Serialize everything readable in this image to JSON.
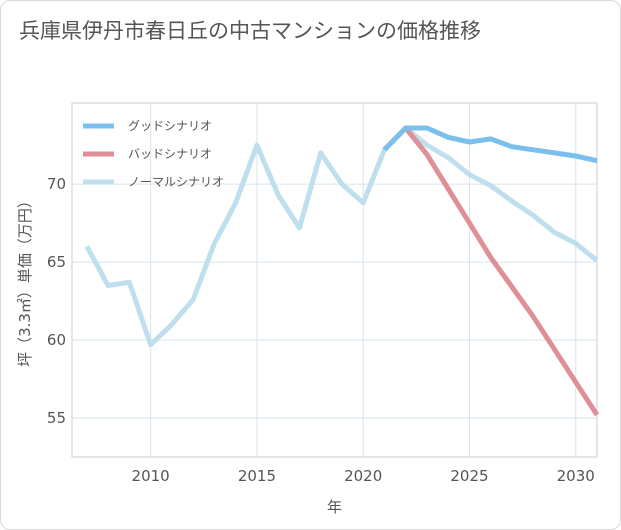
{
  "title": "兵庫県伊丹市春日丘の中古マンションの価格推移",
  "chart_data": {
    "type": "line",
    "title": "兵庫県伊丹市春日丘の中古マンションの価格推移",
    "xlabel": "年",
    "ylabel": "坪（3.3㎡）単価（万円）",
    "xlim": [
      2006.3,
      2031
    ],
    "ylim": [
      52.5,
      75.2
    ],
    "x_ticks": [
      2010,
      2015,
      2020,
      2025,
      2030
    ],
    "y_ticks": [
      55,
      60,
      65,
      70
    ],
    "grid": true,
    "legend_position": "top-left",
    "series": [
      {
        "name": "グッドシナリオ",
        "color": "#7bbfec",
        "x": [
          2021,
          2022,
          2023,
          2024,
          2025,
          2026,
          2027,
          2028,
          2029,
          2030,
          2031
        ],
        "y": [
          72.2,
          73.6,
          73.6,
          73.0,
          72.7,
          72.9,
          72.4,
          72.2,
          72.0,
          71.8,
          71.5
        ]
      },
      {
        "name": "バッドシナリオ",
        "color": "#df8f96",
        "x": [
          2021,
          2022,
          2023,
          2024,
          2025,
          2026,
          2027,
          2028,
          2029,
          2030,
          2031
        ],
        "y": [
          72.2,
          73.6,
          71.9,
          69.7,
          67.5,
          65.3,
          63.4,
          61.5,
          59.4,
          57.3,
          55.2
        ]
      },
      {
        "name": "ノーマルシナリオ",
        "color": "#bfdfee",
        "x": [
          2007,
          2008,
          2009,
          2010,
          2011,
          2012,
          2013,
          2014,
          2015,
          2016,
          2017,
          2018,
          2019,
          2020,
          2021,
          2022,
          2023,
          2024,
          2025,
          2026,
          2027,
          2028,
          2029,
          2030,
          2031
        ],
        "y": [
          66.0,
          63.5,
          63.7,
          59.7,
          61.0,
          62.6,
          66.2,
          68.8,
          72.5,
          69.3,
          67.2,
          72.0,
          70.0,
          68.8,
          72.2,
          73.6,
          72.5,
          71.7,
          70.6,
          69.9,
          68.9,
          68.0,
          66.9,
          66.2,
          65.1
        ]
      }
    ]
  }
}
